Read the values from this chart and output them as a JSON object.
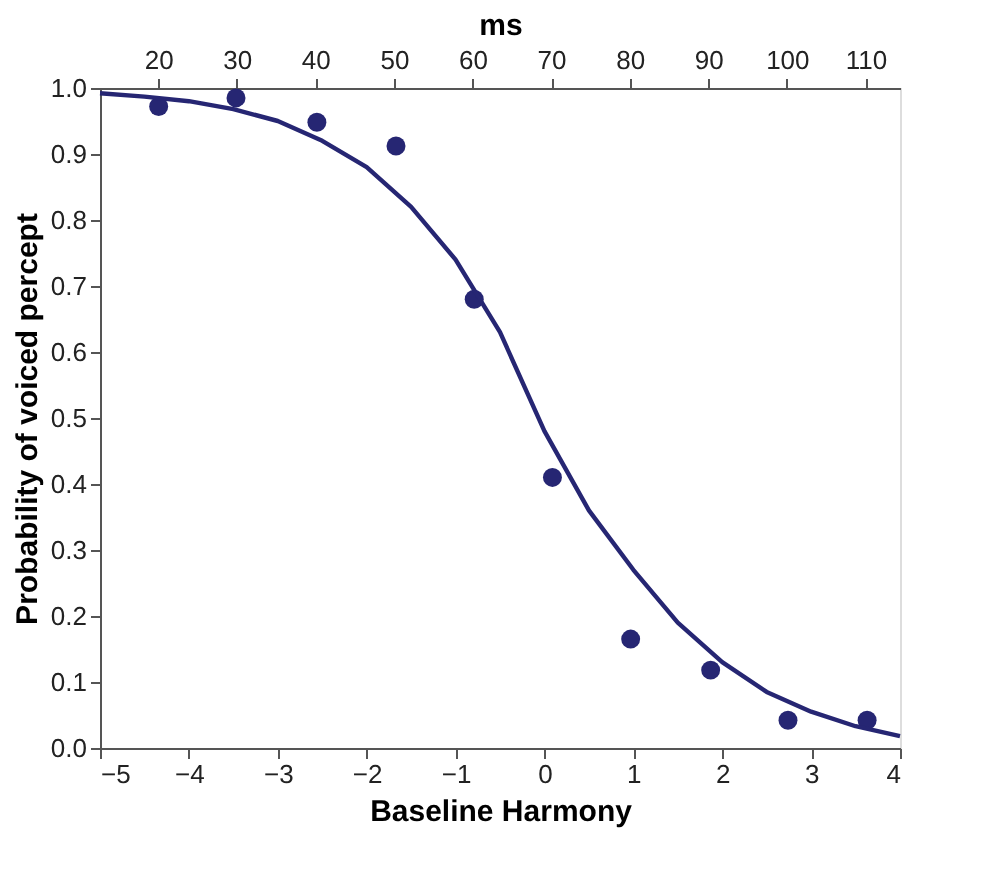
{
  "chart_data": {
    "type": "scatter",
    "xlabel": "Baseline Harmony",
    "ylabel": "Probability of voiced percept",
    "x2label": "ms",
    "xlim": [
      -5,
      4
    ],
    "xticks": [
      -5,
      -4,
      -3,
      -2,
      -1,
      0,
      1,
      2,
      3,
      4
    ],
    "x2lim": [
      12.6,
      114.4
    ],
    "x2ticks": [
      20,
      30,
      40,
      50,
      60,
      70,
      80,
      90,
      100,
      110
    ],
    "ylim": [
      0,
      1
    ],
    "yticks": [
      {
        "value": 0,
        "label": "0.0"
      },
      {
        "value": 0.1,
        "label": "0.1"
      },
      {
        "value": 0.2,
        "label": "0.2"
      },
      {
        "value": 0.3,
        "label": "0.3"
      },
      {
        "value": 0.4,
        "label": "0.4"
      },
      {
        "value": 0.5,
        "label": "0.5"
      },
      {
        "value": 0.6,
        "label": "0.6"
      },
      {
        "value": 0.7,
        "label": "0.7"
      },
      {
        "value": 0.8,
        "label": "0.8"
      },
      {
        "value": 0.9,
        "label": "0.9"
      },
      {
        "value": 1,
        "label": "1.0"
      }
    ],
    "grid": false,
    "marker": "circle",
    "series": [
      {
        "color": "#262673",
        "x": [
          -4.34,
          -3.47,
          -2.56,
          -1.67,
          -0.79,
          0.09,
          0.97,
          1.87,
          2.74,
          3.63
        ],
        "values": [
          0.972,
          0.985,
          0.948,
          0.912,
          0.68,
          0.41,
          0.165,
          0.118,
          0.042,
          0.042
        ]
      },
      {
        "type": "line",
        "color": "#262673",
        "marker": "none",
        "line_style": "solid",
        "x": [
          -5,
          -4.5,
          -4,
          -3.5,
          -3,
          -2.5,
          -2,
          -1.5,
          -1,
          -0.5,
          0,
          0.5,
          1,
          1.5,
          2,
          2.5,
          3,
          3.5,
          4
        ],
        "values": [
          0.992,
          0.987,
          0.98,
          0.968,
          0.95,
          0.92,
          0.88,
          0.82,
          0.74,
          0.63,
          0.48,
          0.36,
          0.27,
          0.19,
          0.13,
          0.085,
          0.055,
          0.033,
          0.018
        ]
      }
    ]
  }
}
